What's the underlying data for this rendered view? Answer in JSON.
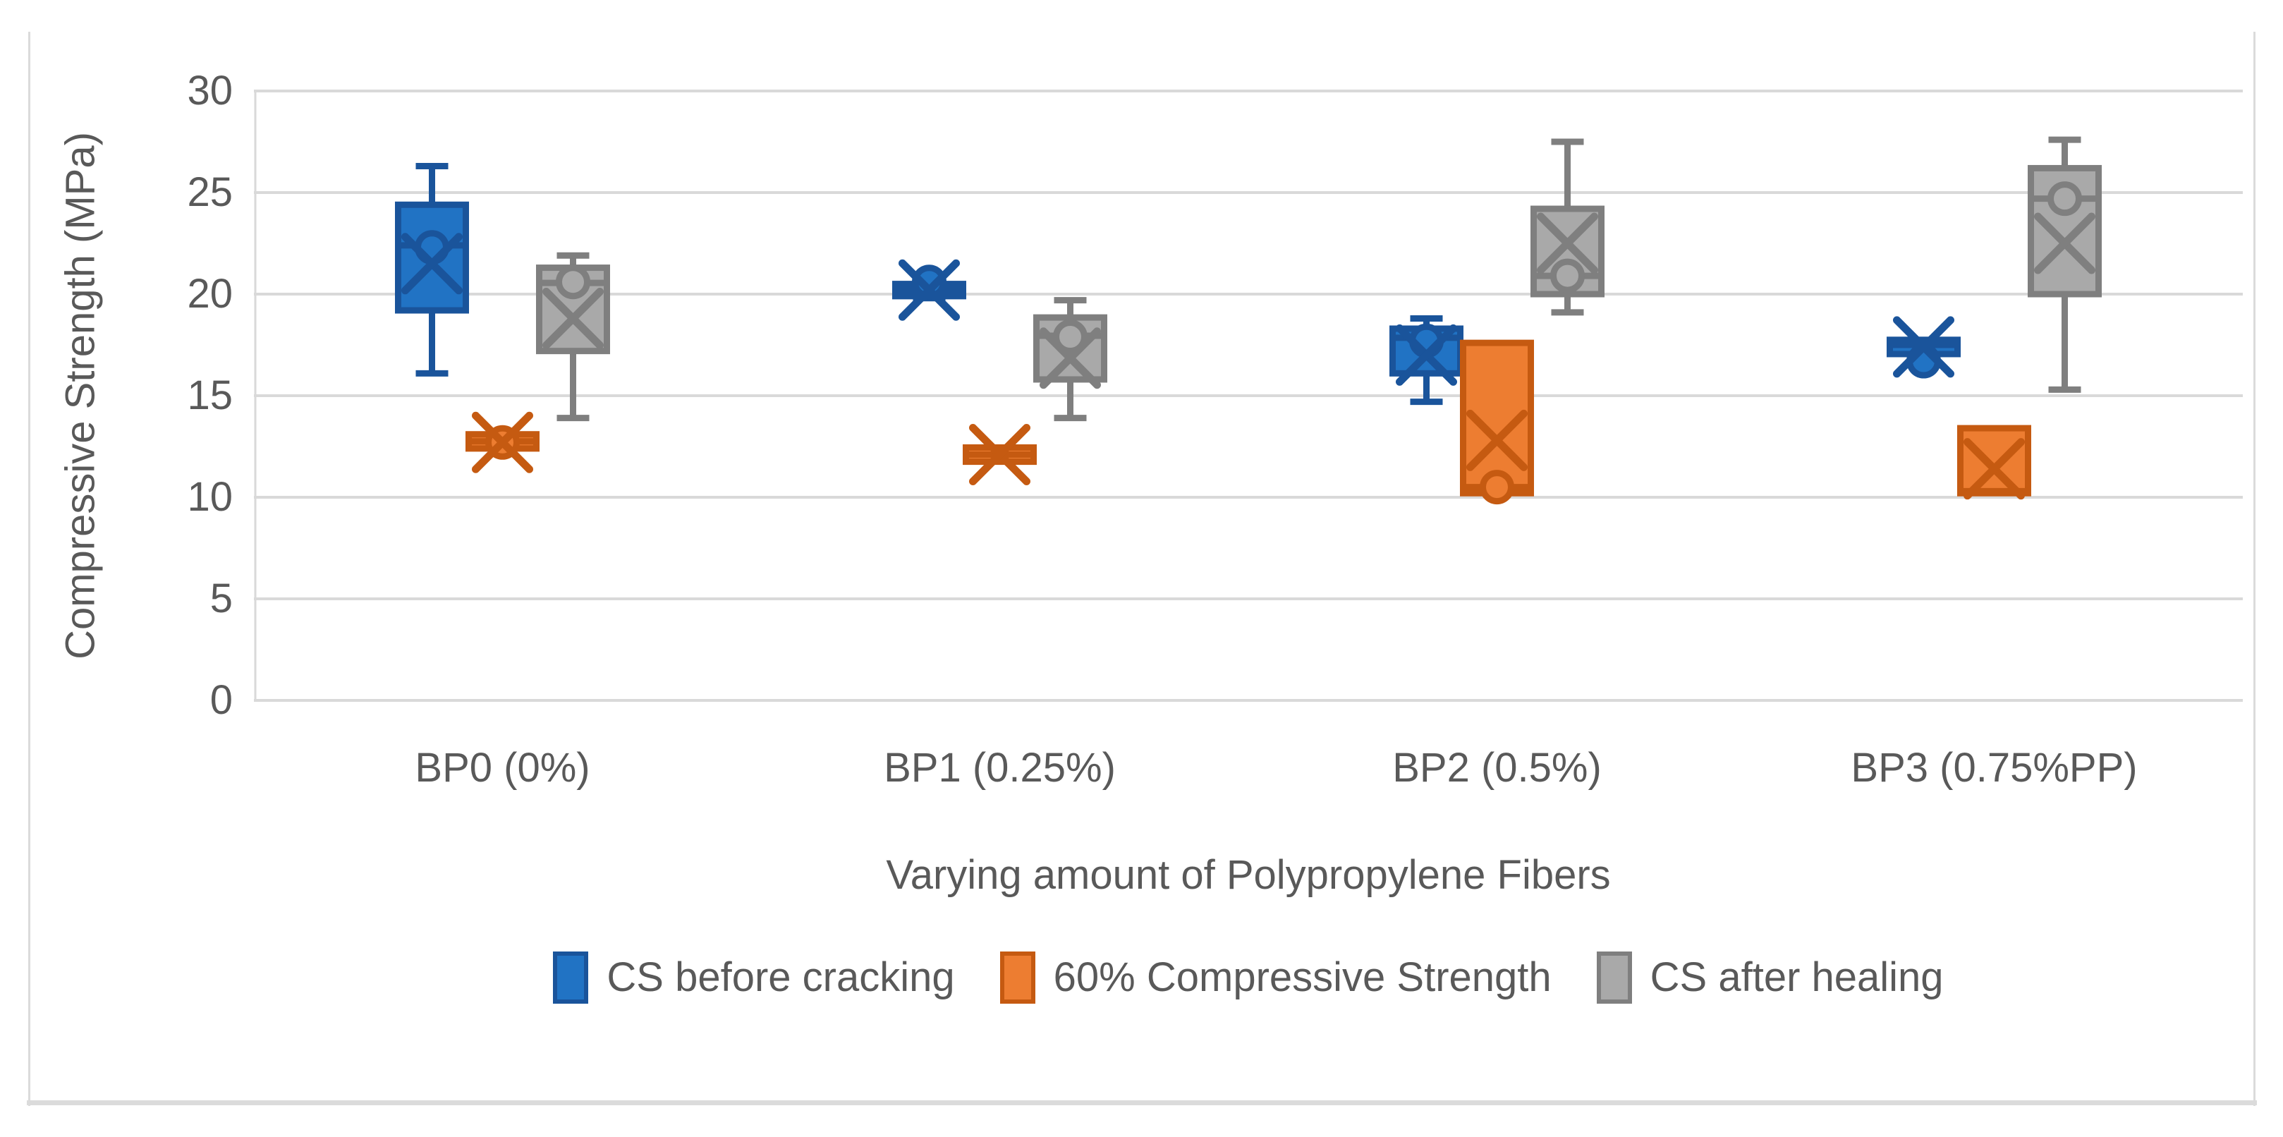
{
  "figure": {
    "y_axis_title": "Compressive Strength (MPa)",
    "x_axis_title": "Varying amount of Polypropylene Fibers"
  },
  "colors": {
    "gridline": "#d9d9d9",
    "frame": "#dbdbdb",
    "text": "#595959"
  },
  "chart_data": {
    "type": "boxplot",
    "title": "",
    "xlabel": "Varying amount of Polypropylene Fibers",
    "ylabel": "Compressive Strength (MPa)",
    "ylim": [
      0,
      30
    ],
    "yticks": [
      30,
      25,
      20,
      15,
      10,
      5,
      0
    ],
    "grid": true,
    "legend_position": "bottom",
    "categories": [
      "BP0 (0%)",
      "BP1 (0.25%)",
      "BP2 (0.5%)",
      "BP3 (0.75%PP)"
    ],
    "series": [
      {
        "name": "CS before cracking",
        "fill": "#2173c4",
        "border": "#1a549b",
        "boxes": [
          {
            "min": 16.1,
            "q1": 19.2,
            "median": 22.4,
            "q3": 24.4,
            "max": 26.3,
            "mean": 21.5,
            "point": 22.3
          },
          {
            "min": 19.8,
            "q1": 19.9,
            "median": 20.2,
            "q3": 20.5,
            "max": 20.6,
            "mean": 20.2,
            "point": 20.6
          },
          {
            "min": 14.7,
            "q1": 16.1,
            "median": 17.85,
            "q3": 18.3,
            "max": 18.8,
            "mean": 17.0,
            "point": 17.7
          },
          {
            "min": 16.6,
            "q1": 17.05,
            "median": 17.5,
            "q3": 17.75,
            "max": 17.75,
            "mean": 17.4,
            "point": 16.7
          }
        ]
      },
      {
        "name": "60% Compressive Strength",
        "fill": "#ed7d31",
        "border": "#c55a11",
        "boxes": [
          {
            "min": 12.4,
            "q1": 12.4,
            "median": 12.75,
            "q3": 13.1,
            "max": 13.1,
            "mean": 12.7,
            "point": 12.7
          },
          {
            "min": 11.75,
            "q1": 11.75,
            "median": 12.1,
            "q3": 12.45,
            "max": 12.45,
            "mean": 12.1,
            "point": null
          },
          {
            "min": 10.2,
            "q1": 10.2,
            "median": 10.5,
            "q3": 17.6,
            "max": 17.6,
            "mean": 12.8,
            "point": 10.5
          },
          {
            "min": 10.2,
            "q1": 10.2,
            "median": 10.3,
            "q3": 13.4,
            "max": 13.4,
            "mean": 11.4,
            "point": null
          }
        ]
      },
      {
        "name": "CS after healing",
        "fill": "#a9a9a9",
        "border": "#7f7f7f",
        "boxes": [
          {
            "min": 13.9,
            "q1": 17.2,
            "median": 20.55,
            "q3": 21.3,
            "max": 21.9,
            "mean": 18.8,
            "point": 20.6
          },
          {
            "min": 13.9,
            "q1": 15.8,
            "median": 17.95,
            "q3": 18.85,
            "max": 19.7,
            "mean": 16.85,
            "point": 17.9
          },
          {
            "min": 19.1,
            "q1": 20.0,
            "median": 20.9,
            "q3": 24.2,
            "max": 27.5,
            "mean": 22.5,
            "point": 20.9
          },
          {
            "min": 15.3,
            "q1": 20.0,
            "median": 24.7,
            "q3": 26.2,
            "max": 27.6,
            "mean": 22.5,
            "point": 24.7
          }
        ]
      }
    ]
  }
}
